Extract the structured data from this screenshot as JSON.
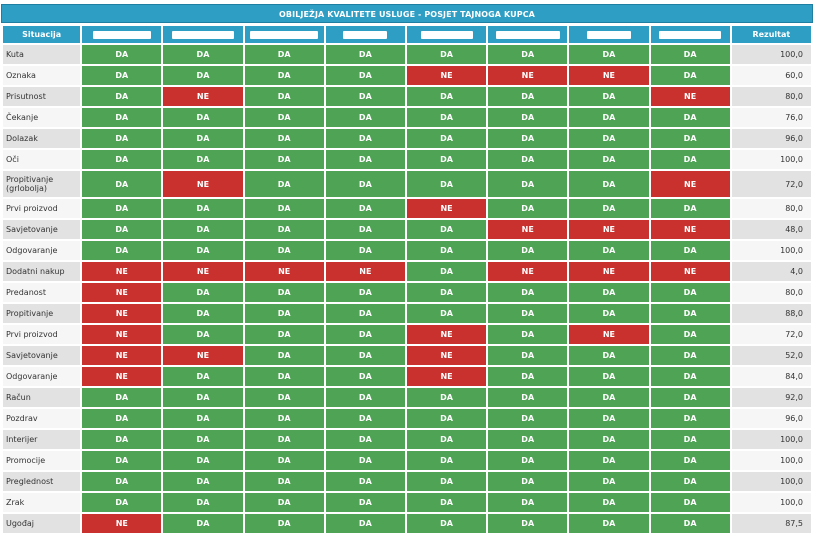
{
  "title": "OBILJEŽJA KVALITETE USLUGE - POSJET TAJNOGA KUPCA",
  "header": {
    "situation": "Situacija",
    "result": "Rezultat",
    "columns": [
      "",
      "",
      "",
      "",
      "",
      "",
      "",
      ""
    ]
  },
  "colors": {
    "header": "#2e9ec4",
    "da": "#4ea354",
    "ne": "#c8312e"
  },
  "rows": [
    {
      "label": "Kuta",
      "cells": [
        "DA",
        "DA",
        "DA",
        "DA",
        "DA",
        "DA",
        "DA",
        "DA"
      ],
      "result": "100,0"
    },
    {
      "label": "Oznaka",
      "cells": [
        "DA",
        "DA",
        "DA",
        "DA",
        "NE",
        "NE",
        "NE",
        "DA"
      ],
      "result": "60,0"
    },
    {
      "label": "Prisutnost",
      "cells": [
        "DA",
        "NE",
        "DA",
        "DA",
        "DA",
        "DA",
        "DA",
        "NE"
      ],
      "result": "80,0"
    },
    {
      "label": "Čekanje",
      "cells": [
        "DA",
        "DA",
        "DA",
        "DA",
        "DA",
        "DA",
        "DA",
        "DA"
      ],
      "result": "76,0"
    },
    {
      "label": "Dolazak",
      "cells": [
        "DA",
        "DA",
        "DA",
        "DA",
        "DA",
        "DA",
        "DA",
        "DA"
      ],
      "result": "96,0"
    },
    {
      "label": "Oči",
      "cells": [
        "DA",
        "DA",
        "DA",
        "DA",
        "DA",
        "DA",
        "DA",
        "DA"
      ],
      "result": "100,0"
    },
    {
      "label": "Propitivanje (grlobolja)",
      "cells": [
        "DA",
        "NE",
        "DA",
        "DA",
        "DA",
        "DA",
        "DA",
        "NE"
      ],
      "result": "72,0"
    },
    {
      "label": "Prvi proizvod",
      "cells": [
        "DA",
        "DA",
        "DA",
        "DA",
        "NE",
        "DA",
        "DA",
        "DA"
      ],
      "result": "80,0"
    },
    {
      "label": "Savjetovanje",
      "cells": [
        "DA",
        "DA",
        "DA",
        "DA",
        "DA",
        "NE",
        "NE",
        "NE"
      ],
      "result": "48,0"
    },
    {
      "label": "Odgovaranje",
      "cells": [
        "DA",
        "DA",
        "DA",
        "DA",
        "DA",
        "DA",
        "DA",
        "DA"
      ],
      "result": "100,0"
    },
    {
      "label": "Dodatni nakup",
      "cells": [
        "NE",
        "NE",
        "NE",
        "NE",
        "DA",
        "NE",
        "NE",
        "NE"
      ],
      "result": "4,0"
    },
    {
      "label": "Predanost",
      "cells": [
        "NE",
        "DA",
        "DA",
        "DA",
        "DA",
        "DA",
        "DA",
        "DA"
      ],
      "result": "80,0"
    },
    {
      "label": "Propitivanje",
      "cells": [
        "NE",
        "DA",
        "DA",
        "DA",
        "DA",
        "DA",
        "DA",
        "DA"
      ],
      "result": "88,0"
    },
    {
      "label": "Prvi proizvod",
      "cells": [
        "NE",
        "DA",
        "DA",
        "DA",
        "NE",
        "DA",
        "NE",
        "DA"
      ],
      "result": "72,0"
    },
    {
      "label": "Savjetovanje",
      "cells": [
        "NE",
        "NE",
        "DA",
        "DA",
        "NE",
        "DA",
        "DA",
        "DA"
      ],
      "result": "52,0"
    },
    {
      "label": "Odgovaranje",
      "cells": [
        "NE",
        "DA",
        "DA",
        "DA",
        "NE",
        "DA",
        "DA",
        "DA"
      ],
      "result": "84,0"
    },
    {
      "label": "Račun",
      "cells": [
        "DA",
        "DA",
        "DA",
        "DA",
        "DA",
        "DA",
        "DA",
        "DA"
      ],
      "result": "92,0"
    },
    {
      "label": "Pozdrav",
      "cells": [
        "DA",
        "DA",
        "DA",
        "DA",
        "DA",
        "DA",
        "DA",
        "DA"
      ],
      "result": "96,0"
    },
    {
      "label": "Interijer",
      "cells": [
        "DA",
        "DA",
        "DA",
        "DA",
        "DA",
        "DA",
        "DA",
        "DA"
      ],
      "result": "100,0"
    },
    {
      "label": "Promocije",
      "cells": [
        "DA",
        "DA",
        "DA",
        "DA",
        "DA",
        "DA",
        "DA",
        "DA"
      ],
      "result": "100,0"
    },
    {
      "label": "Preglednost",
      "cells": [
        "DA",
        "DA",
        "DA",
        "DA",
        "DA",
        "DA",
        "DA",
        "DA"
      ],
      "result": "100,0"
    },
    {
      "label": "Zrak",
      "cells": [
        "DA",
        "DA",
        "DA",
        "DA",
        "DA",
        "DA",
        "DA",
        "DA"
      ],
      "result": "100,0"
    },
    {
      "label": "Ugođaj",
      "cells": [
        "NE",
        "DA",
        "DA",
        "DA",
        "DA",
        "DA",
        "DA",
        "DA"
      ],
      "result": "87,5"
    }
  ]
}
